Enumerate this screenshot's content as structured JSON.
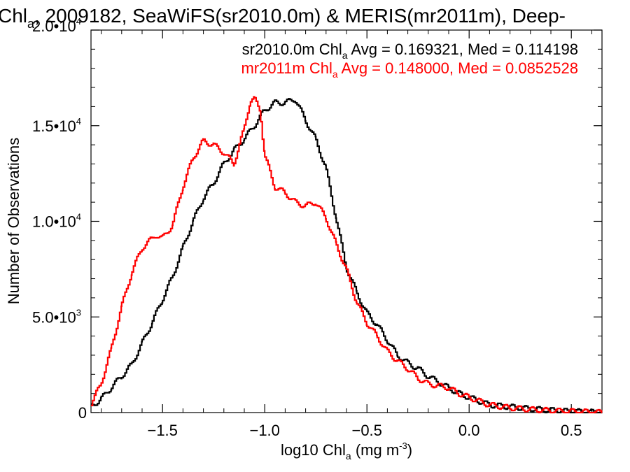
{
  "chart_data": {
    "type": "line",
    "title": {
      "prefix": "Chl",
      "subscript": "a",
      "rest": ", 2009182, SeaWiFS(sr2010.0m) & MERIS(mr2011m), Deep-"
    },
    "xlabel": {
      "prefix": "log10 Chl",
      "subscript": "a",
      "middle": " (mg m",
      "superscript": "-3",
      "suffix": ")"
    },
    "ylabel": "Number of Observations",
    "xlim": [
      -1.85,
      0.65
    ],
    "ylim": [
      0,
      20000
    ],
    "x_ticks": [
      {
        "value": -1.5,
        "label": "−1.5"
      },
      {
        "value": -1.0,
        "label": "−1.0"
      },
      {
        "value": -0.5,
        "label": "−0.5"
      },
      {
        "value": 0.0,
        "label": "0.0"
      },
      {
        "value": 0.5,
        "label": "0.5"
      }
    ],
    "y_ticks": [
      {
        "value": 0,
        "mantissa": "0",
        "exponent": ""
      },
      {
        "value": 5000,
        "mantissa": "5.0•10",
        "exponent": "3"
      },
      {
        "value": 10000,
        "mantissa": "1.0•10",
        "exponent": "4"
      },
      {
        "value": 15000,
        "mantissa": "1.5•10",
        "exponent": "4"
      },
      {
        "value": 20000,
        "mantissa": "2.0•10",
        "exponent": "4"
      }
    ],
    "legend": [
      {
        "prefix": "sr2010.0m Chl",
        "subscript": "a",
        "suffix": " Avg = 0.169321, Med = 0.114198",
        "color": "#000000"
      },
      {
        "prefix": "mr2011m Chl",
        "subscript": "a",
        "suffix": " Avg = 0.148000, Med = 0.0852528",
        "color": "#ff0000"
      }
    ],
    "legend_position": "top-right",
    "series": [
      {
        "color": "#000000",
        "x": [
          -1.85,
          -1.8,
          -1.75,
          -1.7,
          -1.65,
          -1.6,
          -1.55,
          -1.5,
          -1.45,
          -1.4,
          -1.35,
          -1.3,
          -1.25,
          -1.2,
          -1.15,
          -1.1,
          -1.05,
          -1.0,
          -0.95,
          -0.9,
          -0.85,
          -0.8,
          -0.75,
          -0.7,
          -0.65,
          -0.6,
          -0.55,
          -0.5,
          -0.45,
          -0.4,
          -0.35,
          -0.3,
          -0.25,
          -0.2,
          -0.15,
          -0.1,
          -0.05,
          0.0,
          0.05,
          0.1,
          0.2,
          0.3,
          0.4,
          0.5,
          0.6,
          0.65
        ],
        "y": [
          300,
          700,
          1300,
          1900,
          2500,
          3600,
          4700,
          5900,
          7100,
          8600,
          10000,
          11200,
          12000,
          13000,
          13700,
          14300,
          15000,
          15800,
          16200,
          16200,
          16400,
          15300,
          14300,
          12800,
          10200,
          7600,
          6300,
          5200,
          4600,
          3800,
          3000,
          2600,
          2300,
          1900,
          1600,
          1300,
          1000,
          800,
          600,
          400,
          300,
          200,
          120,
          60,
          20,
          0
        ]
      },
      {
        "color": "#ff0000",
        "x": [
          -1.85,
          -1.8,
          -1.75,
          -1.7,
          -1.65,
          -1.6,
          -1.55,
          -1.53,
          -1.5,
          -1.45,
          -1.4,
          -1.35,
          -1.3,
          -1.25,
          -1.2,
          -1.15,
          -1.1,
          -1.07,
          -1.05,
          -1.02,
          -1.0,
          -0.95,
          -0.9,
          -0.85,
          -0.8,
          -0.75,
          -0.7,
          -0.65,
          -0.6,
          -0.55,
          -0.5,
          -0.45,
          -0.4,
          -0.35,
          -0.3,
          -0.25,
          -0.2,
          -0.15,
          -0.1,
          -0.05,
          0.0,
          0.05,
          0.1,
          0.2,
          0.3,
          0.4,
          0.5,
          0.6,
          0.65
        ],
        "y": [
          400,
          1500,
          3300,
          5500,
          7300,
          8600,
          9100,
          9300,
          9100,
          9800,
          11800,
          13300,
          14200,
          14000,
          13600,
          13000,
          14800,
          16300,
          16400,
          15800,
          13500,
          11800,
          11500,
          11000,
          10800,
          11000,
          10200,
          8800,
          7500,
          5800,
          4700,
          4000,
          3200,
          2700,
          2300,
          1800,
          1500,
          1400,
          1300,
          1000,
          800,
          600,
          400,
          250,
          160,
          100,
          60,
          30,
          0
        ]
      }
    ]
  }
}
